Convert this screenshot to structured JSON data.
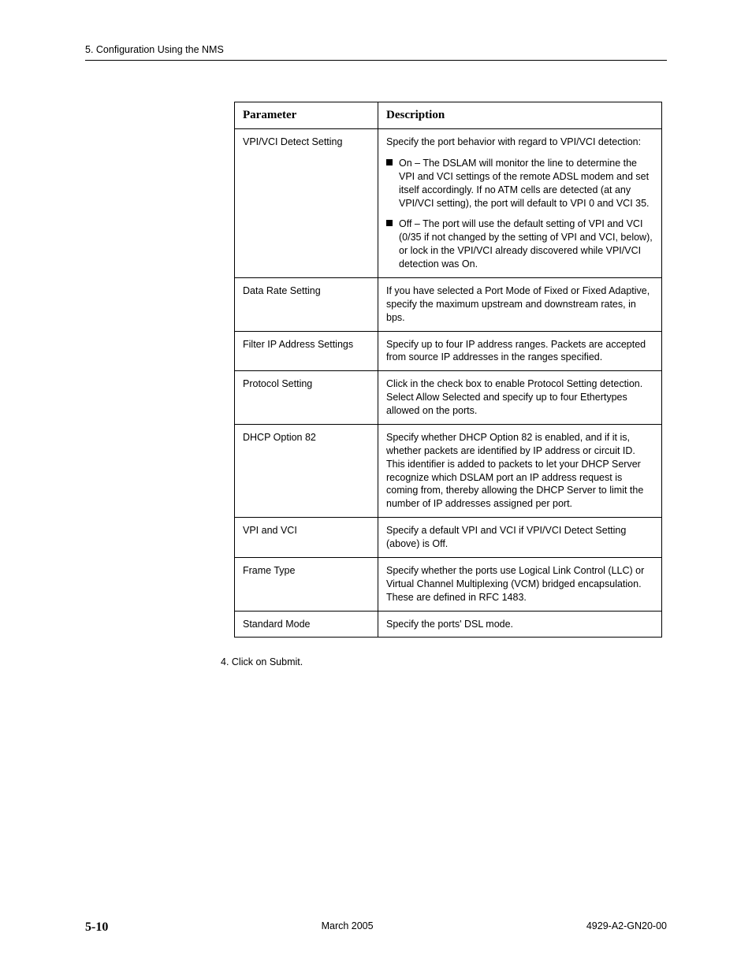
{
  "header": {
    "section_title": "5. Configuration Using the NMS"
  },
  "table": {
    "headers": {
      "col1": "Parameter",
      "col2": "Description"
    },
    "rows": [
      {
        "param": "VPI/VCI Detect Setting",
        "desc_intro": "Specify the port behavior with regard to VPI/VCI detection:",
        "bullets": [
          "On – The DSLAM will monitor the line to determine the VPI and VCI settings of the remote ADSL modem and set itself accordingly. If no ATM cells are detected (at any VPI/VCI setting), the port will default to VPI 0 and VCI 35.",
          "Off – The port will use the default setting of VPI and VCI (0/35 if not changed by the setting of VPI and VCI, below), or lock in the VPI/VCI already discovered while VPI/VCI detection was On."
        ]
      },
      {
        "param": "Data Rate Setting",
        "desc": "If you have selected a Port Mode of Fixed or Fixed Adaptive, specify the maximum upstream and downstream rates, in bps."
      },
      {
        "param": "Filter IP Address Settings",
        "desc": "Specify up to four IP address ranges. Packets are accepted from source IP addresses in the ranges specified."
      },
      {
        "param": "Protocol Setting",
        "desc": "Click in the check box to enable Protocol Setting detection. Select Allow Selected and specify up to four Ethertypes allowed on the ports."
      },
      {
        "param": "DHCP Option 82",
        "desc": "Specify whether DHCP Option 82 is enabled, and if it is, whether packets are identified by IP address or circuit ID. This identifier is added to packets to let your DHCP Server recognize which DSLAM port an IP address request is coming from, thereby allowing the DHCP Server to limit the number of IP addresses assigned per port."
      },
      {
        "param": "VPI and VCI",
        "desc": "Specify a default VPI and VCI if VPI/VCI Detect Setting (above) is Off."
      },
      {
        "param": "Frame Type",
        "desc": "Specify whether the ports use Logical Link Control (LLC) or Virtual Channel Multiplexing (VCM) bridged encapsulation. These are defined in RFC 1483."
      },
      {
        "param": "Standard Mode",
        "desc": "Specify the ports' DSL mode."
      }
    ]
  },
  "step": {
    "text": "4.  Click on Submit."
  },
  "footer": {
    "page": "5-10",
    "date": "March 2005",
    "docnum": "4929-A2-GN20-00"
  }
}
